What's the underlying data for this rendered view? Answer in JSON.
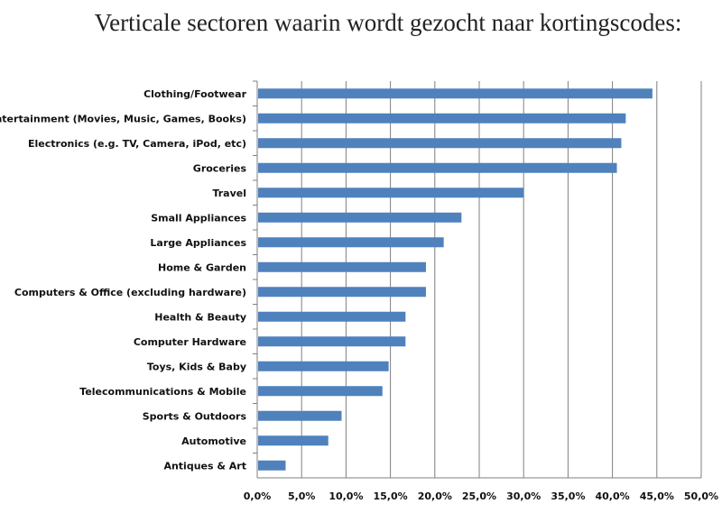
{
  "chart_data": {
    "type": "bar",
    "orientation": "horizontal",
    "title": "Verticale sectoren waarin wordt gezocht naar kortingscodes:",
    "xlabel": "",
    "ylabel": "",
    "xlim": [
      0,
      0.5
    ],
    "x_ticks": [
      0,
      0.05,
      0.1,
      0.15,
      0.2,
      0.25,
      0.3,
      0.35,
      0.4,
      0.45,
      0.5
    ],
    "x_tick_labels": [
      "0,0%",
      "5,0%",
      "10,0%",
      "15,0%",
      "20,0%",
      "25,0%",
      "30,0%",
      "35,0%",
      "40,0%",
      "45,0%",
      "50,0%"
    ],
    "grid": "vertical",
    "legend": "none",
    "bar_color": "#4f81bd",
    "grid_color": "#7f7f7f",
    "categories": [
      "Clothing/Footwear",
      "Entertainment (Movies, Music, Games, Books)",
      "Electronics (e.g. TV, Camera, iPod, etc)",
      "Groceries",
      "Travel",
      "Small Appliances",
      "Large Appliances",
      "Home & Garden",
      "Computers & Office (excluding hardware)",
      "Health & Beauty",
      "Computer Hardware",
      "Toys, Kids & Baby",
      "Telecommunications & Mobile",
      "Sports & Outdoors",
      "Automotive",
      "Antiques & Art"
    ],
    "values": [
      0.445,
      0.415,
      0.41,
      0.405,
      0.3,
      0.23,
      0.21,
      0.19,
      0.19,
      0.167,
      0.167,
      0.148,
      0.141,
      0.095,
      0.08,
      0.032
    ]
  }
}
